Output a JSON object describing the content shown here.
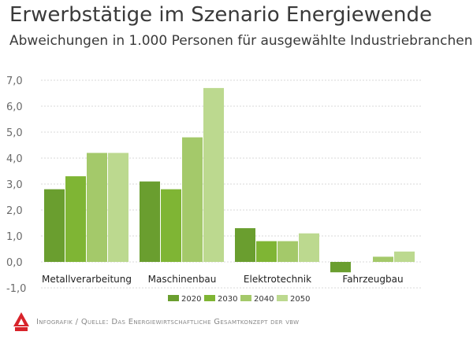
{
  "header": {
    "title": "Erwerbstätige im Szenario Energiewende",
    "subtitle": "Abweichungen in 1.000 Personen für ausgewählte Industriebranchen"
  },
  "footer": {
    "source": "Infografik / Quelle: Das Energiewirtschaftliche Gesamtkonzept der vbw"
  },
  "logo": {
    "icon": "ig-metall-logo-icon",
    "color": "#d8232a"
  },
  "chart_data": {
    "type": "bar",
    "title": "Erwerbstätige im Szenario Energiewende",
    "subtitle": "Abweichungen in 1.000 Personen für ausgewählte Industriebranchen",
    "categories": [
      "Metallverarbeitung",
      "Maschinenbau",
      "Elektrotechnik",
      "Fahrzeugbau"
    ],
    "series": [
      {
        "name": "2020",
        "color": "#6a9e2f",
        "values": [
          2.8,
          3.1,
          1.3,
          -0.4
        ]
      },
      {
        "name": "2030",
        "color": "#7fb534",
        "values": [
          3.3,
          2.8,
          0.8,
          0.0
        ]
      },
      {
        "name": "2040",
        "color": "#a4c96a",
        "values": [
          4.2,
          4.8,
          0.8,
          0.2
        ]
      },
      {
        "name": "2050",
        "color": "#bcd98f",
        "values": [
          4.2,
          6.7,
          1.1,
          0.4
        ]
      }
    ],
    "yticks": [
      "7,0",
      "6,0",
      "5,0",
      "4,0",
      "3,0",
      "2,0",
      "1,0",
      "0,0",
      "-1,0"
    ],
    "ylim": [
      -1,
      7
    ],
    "grid": true,
    "legend_position": "bottom-center",
    "xlabel": "",
    "ylabel": ""
  }
}
